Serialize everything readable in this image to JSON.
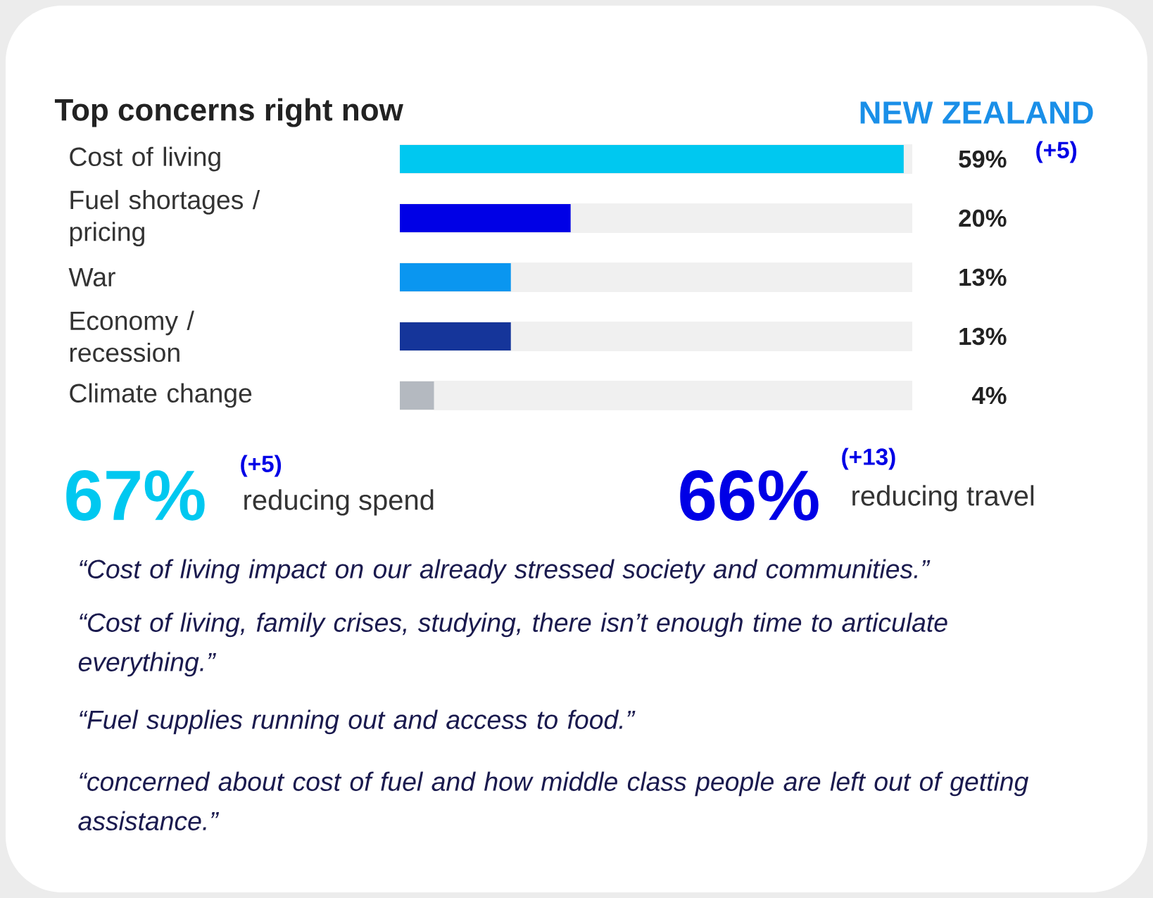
{
  "chart_data": {
    "type": "bar",
    "orientation": "horizontal",
    "title": "Top concerns right now",
    "subtitle": "NEW ZEALAND",
    "categories": [
      "Cost of living",
      "Fuel shortages / pricing",
      "War",
      "Economy / recession",
      "Climate change"
    ],
    "values": [
      59,
      20,
      13,
      13,
      4
    ],
    "colors": [
      "#00c8f0",
      "#0000e6",
      "#0a96f0",
      "#15359a",
      "#b4b9c0"
    ],
    "value_labels": [
      "59%",
      "20%",
      "13%",
      "13%",
      "4%"
    ],
    "xlim": [
      0,
      60
    ],
    "tick_labels": "y",
    "annotations": [
      "(+5)",
      "67%",
      "(+5)",
      "reducing spend",
      "66%",
      "(+13)",
      "reducing travel",
      "“Cost of living impact on our already stressed society and communities.”",
      "“Cost of living, family crises, studying, there isn’t enough time to articulate everything.”",
      "“Fuel supplies running out and access to food.”",
      "“concerned about cost of fuel and how middle class people are left out of getting assistance.”"
    ]
  }
}
